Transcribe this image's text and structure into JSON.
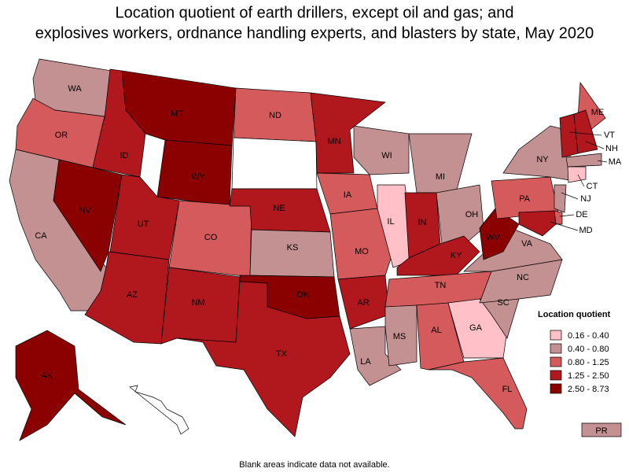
{
  "title_lines": [
    "Location quotient of earth drillers, except oil and gas; and",
    "explosives workers, ordnance handling experts, and blasters by state, May 2020"
  ],
  "legend": {
    "title": "Location quotient",
    "bins": [
      {
        "label": "0.16 - 0.40",
        "color": "#ffc0c8"
      },
      {
        "label": "0.40 - 0.80",
        "color": "#c39191"
      },
      {
        "label": "0.80 - 1.25",
        "color": "#d45a5c"
      },
      {
        "label": "1.25 - 2.50",
        "color": "#b0181e"
      },
      {
        "label": "2.50 - 8.73",
        "color": "#8b0000"
      }
    ]
  },
  "states": [
    {
      "label": "WA",
      "bin": 1
    },
    {
      "label": "OR",
      "bin": 2
    },
    {
      "label": "CA",
      "bin": 1
    },
    {
      "label": "NV",
      "bin": 4
    },
    {
      "label": "ID",
      "bin": 3
    },
    {
      "label": "MT",
      "bin": 4
    },
    {
      "label": "WY",
      "bin": 4
    },
    {
      "label": "UT",
      "bin": 3
    },
    {
      "label": "AZ",
      "bin": 3
    },
    {
      "label": "CO",
      "bin": 2
    },
    {
      "label": "NM",
      "bin": 3
    },
    {
      "label": "ND",
      "bin": 2
    },
    {
      "label": null,
      "bin": null
    },
    {
      "label": "NE",
      "bin": 3
    },
    {
      "label": "KS",
      "bin": 1
    },
    {
      "label": "OK",
      "bin": 4
    },
    {
      "label": "TX",
      "bin": 3
    },
    {
      "label": "MN",
      "bin": 3
    },
    {
      "label": "IA",
      "bin": 2
    },
    {
      "label": "MO",
      "bin": 2
    },
    {
      "label": "AR",
      "bin": 3
    },
    {
      "label": "LA",
      "bin": 1
    },
    {
      "label": "WI",
      "bin": 1
    },
    {
      "label": "IL",
      "bin": 0
    },
    {
      "label": "MI",
      "bin": 1
    },
    {
      "label": "IN",
      "bin": 3
    },
    {
      "label": "OH",
      "bin": 1
    },
    {
      "label": "KY",
      "bin": 3
    },
    {
      "label": "TN",
      "bin": 2
    },
    {
      "label": "MS",
      "bin": 1
    },
    {
      "label": "AL",
      "bin": 2
    },
    {
      "label": "GA",
      "bin": 0
    },
    {
      "label": "FL",
      "bin": 2
    },
    {
      "label": "SC",
      "bin": 1
    },
    {
      "label": "NC",
      "bin": 1
    },
    {
      "label": "VA",
      "bin": 1
    },
    {
      "label": "WV",
      "bin": 4
    },
    {
      "label": "PA",
      "bin": 2
    },
    {
      "label": "NY",
      "bin": 1
    },
    {
      "label": "ME",
      "bin": 2
    },
    {
      "label": "VT",
      "bin": 3
    },
    {
      "label": "NH",
      "bin": 3
    },
    {
      "label": "MA",
      "bin": 1
    },
    {
      "label": "CT",
      "bin": 0
    },
    {
      "label": "NJ",
      "bin": 1
    },
    {
      "label": "DE",
      "bin": 2
    },
    {
      "label": "MD",
      "bin": 3
    },
    {
      "label": "AK",
      "bin": 4
    },
    {
      "label": "PR",
      "bin": 1
    },
    {
      "label": null,
      "bin": null
    }
  ],
  "footnote": "Blank areas indicate data not available."
}
